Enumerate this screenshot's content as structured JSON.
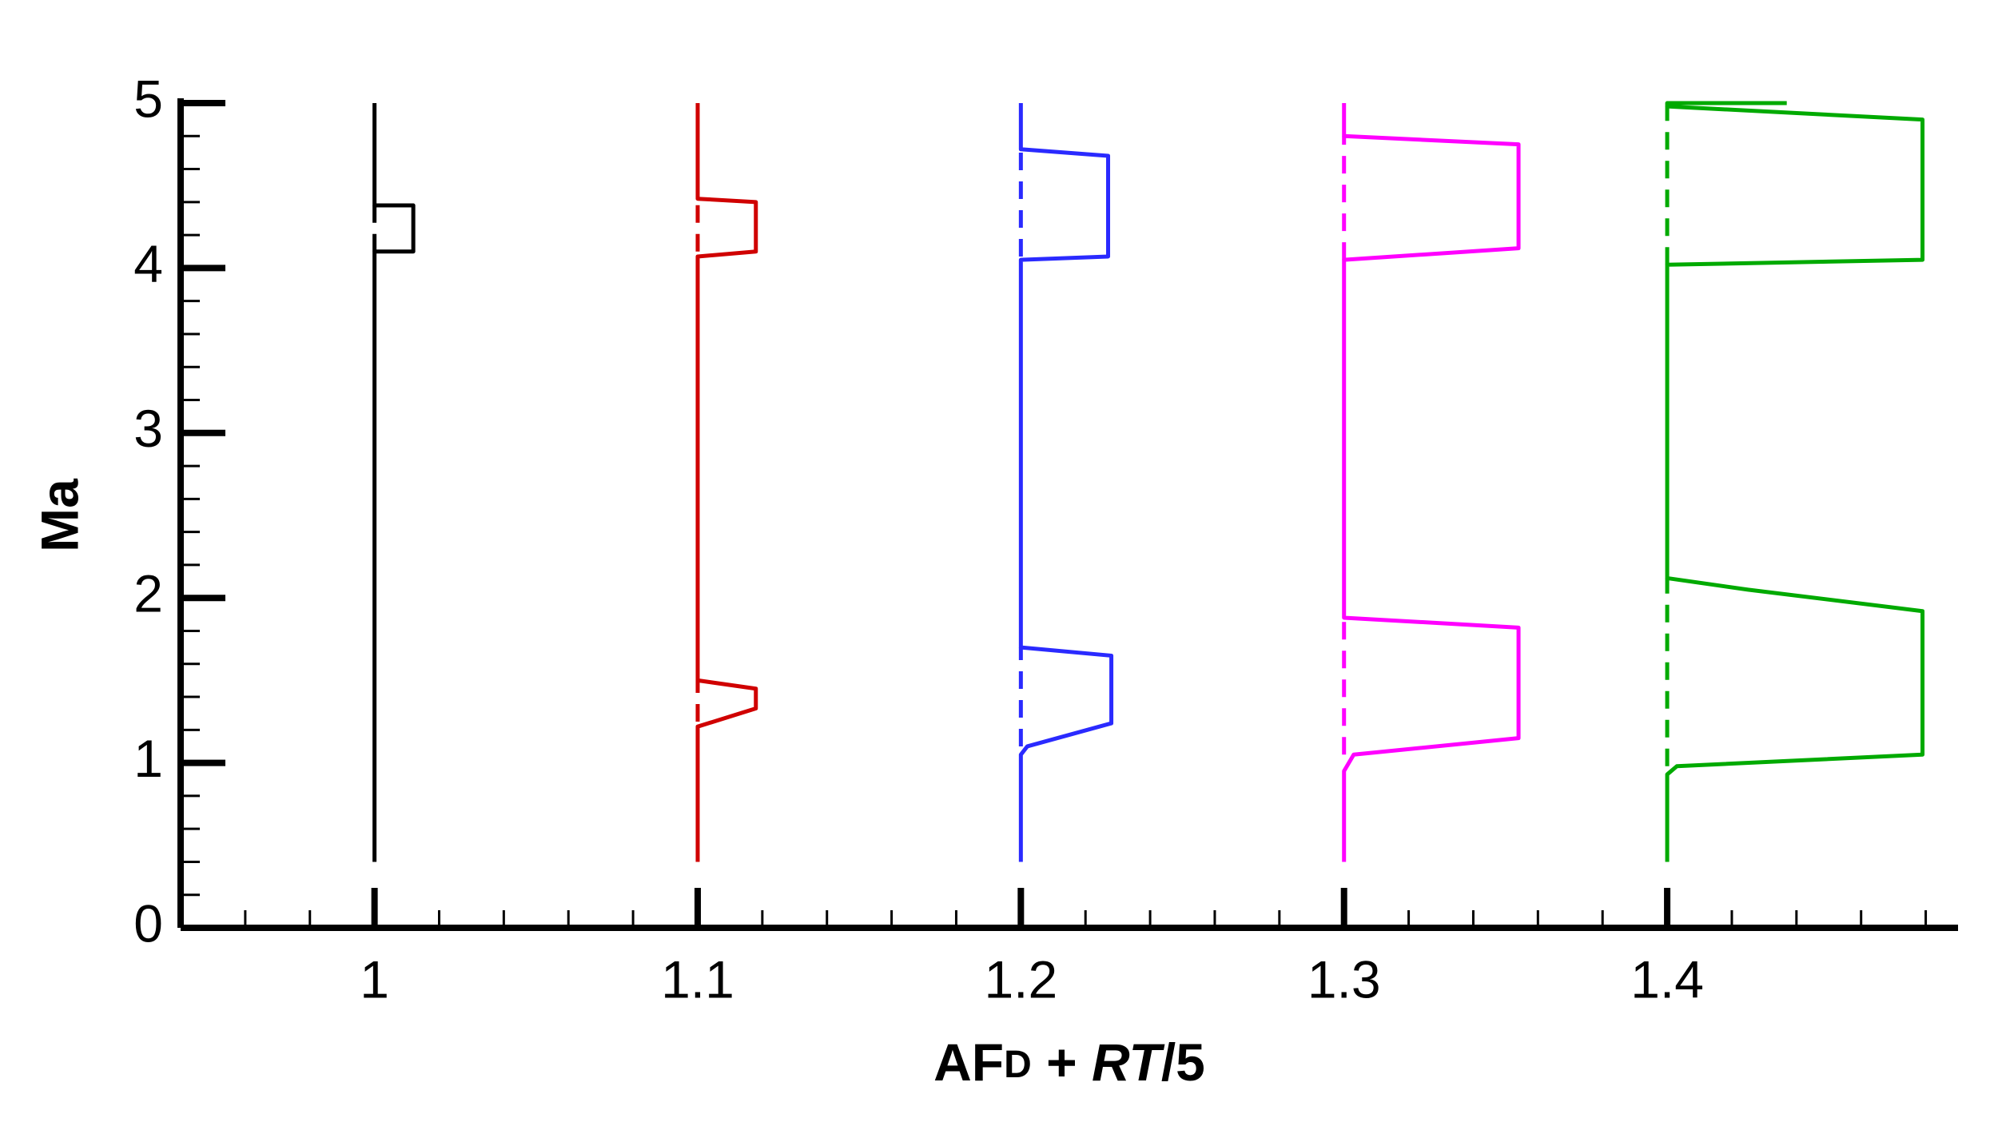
{
  "chart_data": {
    "type": "line",
    "y_label": "Ma",
    "x_label_parts": [
      "AF",
      "D",
      " + ",
      "RT",
      "/5"
    ],
    "xlim": [
      0.94,
      1.49
    ],
    "ylim": [
      0,
      5
    ],
    "xticks": [
      1,
      1.1,
      1.2,
      1.3,
      1.4
    ],
    "yticks": [
      0,
      1,
      2,
      3,
      4,
      5
    ],
    "series": [
      {
        "color": "#000000",
        "x": [
          1,
          1,
          1.012,
          1.012,
          1,
          1
        ],
        "values": [
          0.4,
          4.1,
          4.1,
          4.38,
          4.38,
          5
        ]
      },
      {
        "color": "#000000",
        "dashed": true,
        "x": [
          1,
          1
        ],
        "values": [
          4.1,
          4.38
        ]
      },
      {
        "color": "#d00000",
        "x": [
          1.1,
          1.1,
          1.118,
          1.118,
          1.1,
          1.1,
          1.118,
          1.118,
          1.1,
          1.1
        ],
        "values": [
          0.4,
          1.22,
          1.33,
          1.45,
          1.5,
          4.07,
          4.1,
          4.4,
          4.42,
          5
        ]
      },
      {
        "color": "#d00000",
        "dashed": true,
        "x": [
          1.1,
          1.1,
          null,
          1.1,
          1.1
        ],
        "values": [
          1.25,
          1.5,
          null,
          4.1,
          4.42
        ]
      },
      {
        "color": "#2a2aff",
        "x": [
          1.2,
          1.2,
          1.202,
          1.228,
          1.228,
          1.2,
          1.2,
          1.227,
          1.227,
          1.2,
          1.2
        ],
        "values": [
          0.4,
          1.05,
          1.1,
          1.24,
          1.65,
          1.7,
          4.05,
          4.07,
          4.68,
          4.72,
          5
        ]
      },
      {
        "color": "#2a2aff",
        "dashed": true,
        "x": [
          1.2,
          1.2,
          null,
          1.2,
          1.2
        ],
        "values": [
          1.1,
          1.7,
          null,
          4.07,
          4.72
        ]
      },
      {
        "color": "#ff00ff",
        "x": [
          1.3,
          1.3,
          1.303,
          1.354,
          1.354,
          1.3,
          1.3,
          1.354,
          1.354,
          1.3,
          1.3
        ],
        "values": [
          0.4,
          0.95,
          1.05,
          1.15,
          1.82,
          1.88,
          4.05,
          4.12,
          4.75,
          4.8,
          5
        ]
      },
      {
        "color": "#ff00ff",
        "dashed": true,
        "x": [
          1.3,
          1.3,
          null,
          1.3,
          1.3
        ],
        "values": [
          1.05,
          1.88,
          null,
          4.05,
          4.8
        ]
      },
      {
        "color": "#00aa00",
        "x": [
          1.4,
          1.4,
          1.403,
          1.479,
          1.479,
          1.425,
          1.4,
          1.4,
          1.479,
          1.479,
          1.4,
          1.4,
          1.437
        ],
        "values": [
          0.4,
          0.93,
          0.98,
          1.05,
          1.92,
          2.05,
          2.12,
          4.02,
          4.05,
          4.9,
          4.98,
          5,
          5
        ]
      },
      {
        "color": "#00aa00",
        "dashed": true,
        "x": [
          1.4,
          1.4,
          null,
          1.4,
          1.4
        ],
        "values": [
          0.98,
          2.12,
          null,
          4.02,
          4.98
        ]
      }
    ]
  }
}
